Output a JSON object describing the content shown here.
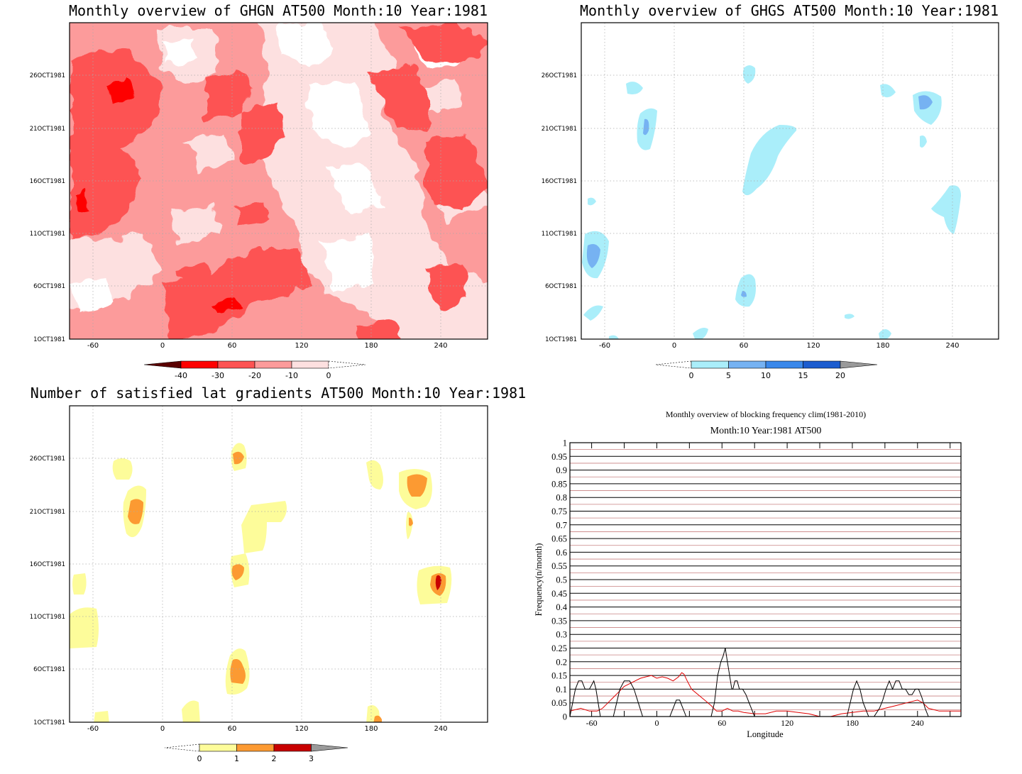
{
  "chart_data": [
    {
      "type": "heatmap",
      "title": "Monthly overview of GHGN AT500 Month:10 Year:1981",
      "xticks": [
        "-60",
        "0",
        "60",
        "120",
        "180",
        "240"
      ],
      "yticks": [
        "1OCT1981",
        "6OCT1981",
        "11OCT1981",
        "16OCT1981",
        "21OCT1981",
        "26OCT1981"
      ],
      "xlim": [
        -80,
        280
      ],
      "colorbar": {
        "labels": [
          "-40",
          "-30",
          "-20",
          "-10",
          "0"
        ],
        "colors": [
          "#fe0000",
          "#fd5353",
          "#fc9b9b",
          "#fde0e0"
        ],
        "low_arrow": "#5a0000",
        "high_arrow": "#ffffff"
      }
    },
    {
      "type": "heatmap",
      "title": "Monthly overview of GHGS AT500 Month:10 Year:1981",
      "xticks": [
        "-60",
        "0",
        "60",
        "120",
        "180",
        "240"
      ],
      "yticks": [
        "1OCT1981",
        "6OCT1981",
        "11OCT1981",
        "16OCT1981",
        "21OCT1981",
        "26OCT1981"
      ],
      "xlim": [
        -80,
        280
      ],
      "colorbar": {
        "labels": [
          "0",
          "5",
          "10",
          "15",
          "20"
        ],
        "colors": [
          "#aaeefa",
          "#76b2f2",
          "#3a88ea",
          "#1b5ccf"
        ],
        "low_arrow": "#ffffff",
        "high_arrow": "#9a9a9a"
      }
    },
    {
      "type": "heatmap",
      "title": "Number of satisfied lat gradients AT500 Month:10 Year:1981",
      "xticks": [
        "-60",
        "0",
        "60",
        "120",
        "180",
        "240"
      ],
      "yticks": [
        "1OCT1981",
        "6OCT1981",
        "11OCT1981",
        "16OCT1981",
        "21OCT1981",
        "26OCT1981"
      ],
      "xlim": [
        -80,
        280
      ],
      "colorbar": {
        "labels": [
          "0",
          "1",
          "2",
          "3"
        ],
        "colors": [
          "#fdfc9a",
          "#fc9a32",
          "#c80000"
        ],
        "low_arrow": "#ffffff",
        "high_arrow": "#9a9a9a"
      }
    },
    {
      "type": "line",
      "title": "Monthly overview of blocking frequency clim(1981-2010)",
      "subtitle": "Month:10 Year:1981  AT500",
      "xlabel": "Longitude",
      "ylabel": "Frequency(n/month)",
      "xlim": [
        -80,
        280
      ],
      "ylim": [
        0,
        1
      ],
      "xticks": [
        "-60",
        "0",
        "60",
        "120",
        "180",
        "240"
      ],
      "yticks": [
        "0",
        "0.05",
        "0.1",
        "0.15",
        "0.2",
        "0.25",
        "0.3",
        "0.35",
        "0.4",
        "0.45",
        "0.5",
        "0.55",
        "0.6",
        "0.65",
        "0.7",
        "0.75",
        "0.8",
        "0.85",
        "0.9",
        "0.95",
        "1"
      ],
      "colors": {
        "current": "#000000",
        "clim": "#e00000"
      },
      "series": [
        {
          "x": [
            -80,
            -75,
            -72,
            -69,
            -66,
            -62,
            -58,
            -56,
            -54,
            -52,
            -47,
            -40,
            -37,
            -34,
            -30,
            -25,
            -21,
            -17,
            -13,
            -10,
            -7,
            -3,
            0,
            3,
            6,
            9,
            12,
            15,
            18,
            21,
            24,
            27,
            30,
            35,
            40,
            45,
            50,
            53,
            56,
            59,
            61,
            63,
            65,
            67,
            69,
            70,
            72,
            74,
            76,
            79,
            82,
            85,
            87,
            90,
            93,
            96,
            100,
            110,
            120,
            130,
            140,
            150,
            160,
            170,
            175,
            178,
            181,
            184,
            187,
            190,
            195,
            200,
            205,
            208,
            211,
            214,
            217,
            220,
            223,
            226,
            229,
            232,
            235,
            238,
            241,
            244,
            247,
            250,
            255,
            260,
            270,
            280
          ],
          "y": [
            0.0,
            0.1,
            0.13,
            0.13,
            0.1,
            0.1,
            0.13,
            0.1,
            0.05,
            0.0,
            0.0,
            0.0,
            0.05,
            0.1,
            0.13,
            0.13,
            0.1,
            0.05,
            0.0,
            0.0,
            0.0,
            0.0,
            0.0,
            0.0,
            0.0,
            0.0,
            0.0,
            0.03,
            0.06,
            0.06,
            0.03,
            0.0,
            0.0,
            0.0,
            0.0,
            0.0,
            0.0,
            0.05,
            0.15,
            0.2,
            0.22,
            0.25,
            0.2,
            0.15,
            0.1,
            0.1,
            0.13,
            0.13,
            0.1,
            0.1,
            0.08,
            0.05,
            0.03,
            0.0,
            0.0,
            0.0,
            0.0,
            0.0,
            0.0,
            0.0,
            0.0,
            0.0,
            0.0,
            0.0,
            0.0,
            0.05,
            0.1,
            0.13,
            0.1,
            0.05,
            0.0,
            0.0,
            0.03,
            0.06,
            0.1,
            0.13,
            0.1,
            0.13,
            0.13,
            0.1,
            0.1,
            0.08,
            0.08,
            0.1,
            0.1,
            0.07,
            0.03,
            0.0,
            0.0,
            0.0,
            0.0,
            0.0
          ]
        },
        {
          "x": [
            -80,
            -70,
            -62,
            -55,
            -50,
            -45,
            -40,
            -35,
            -30,
            -25,
            -20,
            -15,
            -10,
            -5,
            0,
            5,
            10,
            15,
            20,
            23,
            25,
            28,
            32,
            38,
            44,
            50,
            55,
            60,
            65,
            70,
            75,
            80,
            90,
            100,
            110,
            120,
            130,
            140,
            150,
            160,
            170,
            180,
            190,
            200,
            210,
            220,
            230,
            240,
            245,
            250,
            260,
            270,
            280
          ],
          "y": [
            0.02,
            0.03,
            0.02,
            0.02,
            0.03,
            0.05,
            0.07,
            0.09,
            0.11,
            0.12,
            0.13,
            0.14,
            0.145,
            0.15,
            0.14,
            0.145,
            0.14,
            0.13,
            0.145,
            0.16,
            0.155,
            0.13,
            0.1,
            0.08,
            0.06,
            0.04,
            0.02,
            0.02,
            0.03,
            0.02,
            0.02,
            0.015,
            0.01,
            0.01,
            0.02,
            0.02,
            0.015,
            0.01,
            0.0,
            0.0,
            0.01,
            0.015,
            0.02,
            0.02,
            0.03,
            0.04,
            0.05,
            0.06,
            0.05,
            0.03,
            0.02,
            0.02,
            0.02
          ]
        }
      ]
    }
  ]
}
